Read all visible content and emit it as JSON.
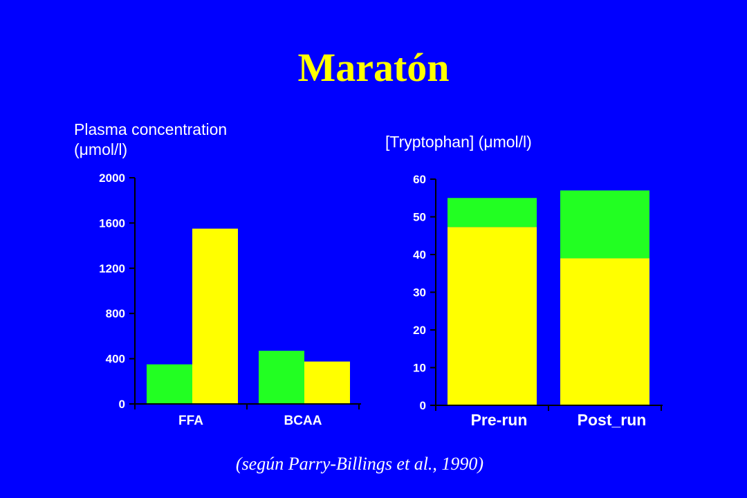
{
  "title": "Maratón",
  "citation": "(según Parry-Billings et al., 1990)",
  "colors": {
    "background": "#0000ff",
    "title": "#ffff00",
    "series_a": "#22ff22",
    "series_b": "#ffff00",
    "text": "#ffffff"
  },
  "chart_data": [
    {
      "type": "bar",
      "ylabel": "Plasma concentration (μmol/l)",
      "ylabel_lines": [
        "Plasma concentration",
        "(μmol/l)"
      ],
      "categories": [
        "FFA",
        "BCAA"
      ],
      "ylim": [
        0,
        2000
      ],
      "yticks": [
        0,
        400,
        800,
        1200,
        1600,
        2000
      ],
      "grid": false,
      "series": [
        {
          "color": "#22ff22",
          "values": [
            350,
            470
          ]
        },
        {
          "color": "#ffff00",
          "values": [
            1550,
            375
          ]
        }
      ]
    },
    {
      "type": "stacked_bar",
      "ylabel": "[Tryptophan] (μmol/l)",
      "ylabel_lines": [
        "[Tryptophan] (μmol/l)"
      ],
      "categories": [
        "Pre-run",
        "Post_run"
      ],
      "ylim": [
        0,
        60
      ],
      "yticks": [
        0,
        10,
        20,
        30,
        40,
        50,
        60
      ],
      "grid": false,
      "series": [
        {
          "color": "#ffff00",
          "values": [
            47.3,
            39
          ]
        },
        {
          "color": "#22ff22",
          "values": [
            7.7,
            18
          ]
        }
      ]
    }
  ]
}
